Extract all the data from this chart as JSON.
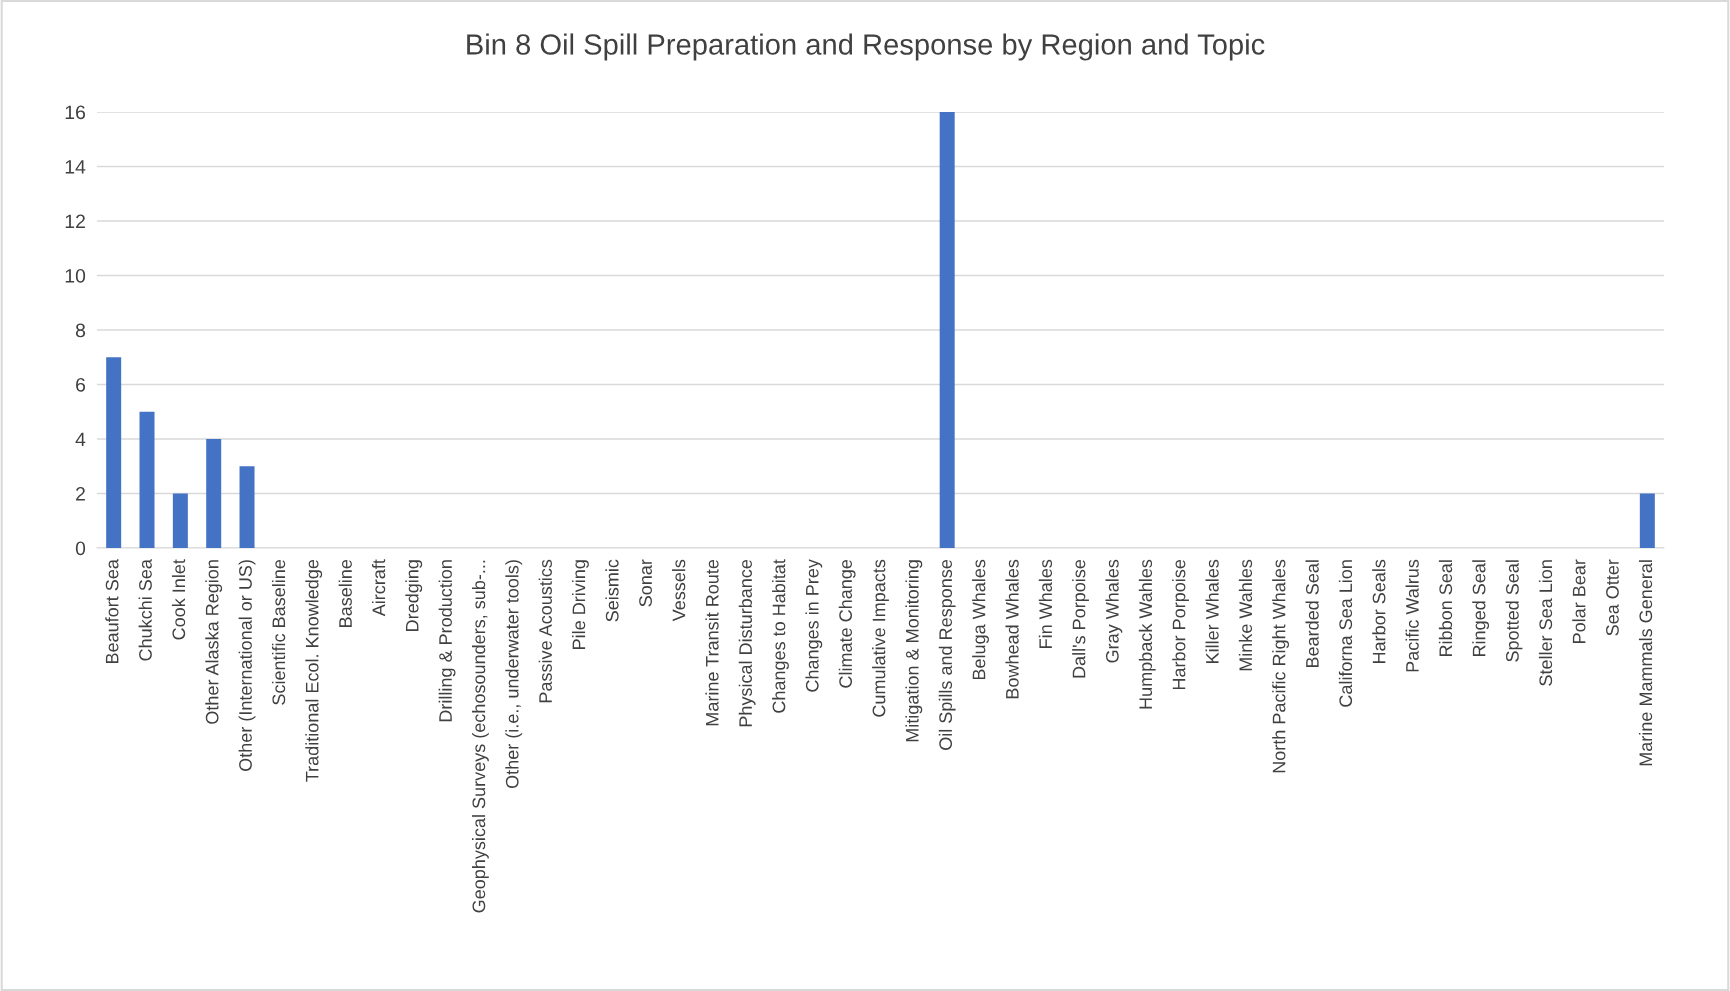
{
  "chart_data": {
    "type": "bar",
    "title": "Bin 8 Oil Spill Preparation and Response by Region and Topic",
    "categories": [
      "Beaufort Sea",
      "Chukchi Sea",
      "Cook Inlet",
      "Other Alaska Region",
      "Other (International or US)",
      "Scientific Baseline",
      "Traditional Ecol. Knowledge",
      "Baseline",
      "Aircraft",
      "Dredging",
      "Drilling & Production",
      "Geophysical Surveys (echosounders, sub-...",
      "Other (i.e., underwater tools)",
      "Passive Acoustics",
      "Pile Driving",
      "Seismic",
      "Sonar",
      "Vessels",
      "Marine Transit Route",
      "Physical Disturbance",
      "Changes to Habitat",
      "Changes in Prey",
      "Climate Change",
      "Cumulative Impacts",
      "Mitigation & Monitoring",
      "Oil Spills and Response",
      "Beluga Whales",
      "Bowhead Whales",
      "Fin Whales",
      "Dall's Porpoise",
      "Gray Whales",
      "Humpback Wahles",
      "Harbor Porpoise",
      "Killer Whales",
      "Minke Wahles",
      "North Pacific Right Whales",
      "Bearded Seal",
      "Californa Sea Lion",
      "Harbor Seals",
      "Pacific Walrus",
      "Ribbon Seal",
      "Ringed Seal",
      "Spotted Seal",
      "Steller Sea Lion",
      "Polar Bear",
      "Sea Otter",
      "Marine Mammals General"
    ],
    "values": [
      7,
      5,
      2,
      4,
      3,
      0,
      0,
      0,
      0,
      0,
      0,
      0,
      0,
      0,
      0,
      0,
      0,
      0,
      0,
      0,
      0,
      0,
      0,
      0,
      0,
      16,
      0,
      0,
      0,
      0,
      0,
      0,
      0,
      0,
      0,
      0,
      0,
      0,
      0,
      0,
      0,
      0,
      0,
      0,
      0,
      0,
      2
    ],
    "color": "#4472c4",
    "ylim": [
      0,
      16
    ],
    "yticks": [
      0,
      2,
      4,
      6,
      8,
      10,
      12,
      14,
      16
    ],
    "grid": "y",
    "legend": false
  }
}
